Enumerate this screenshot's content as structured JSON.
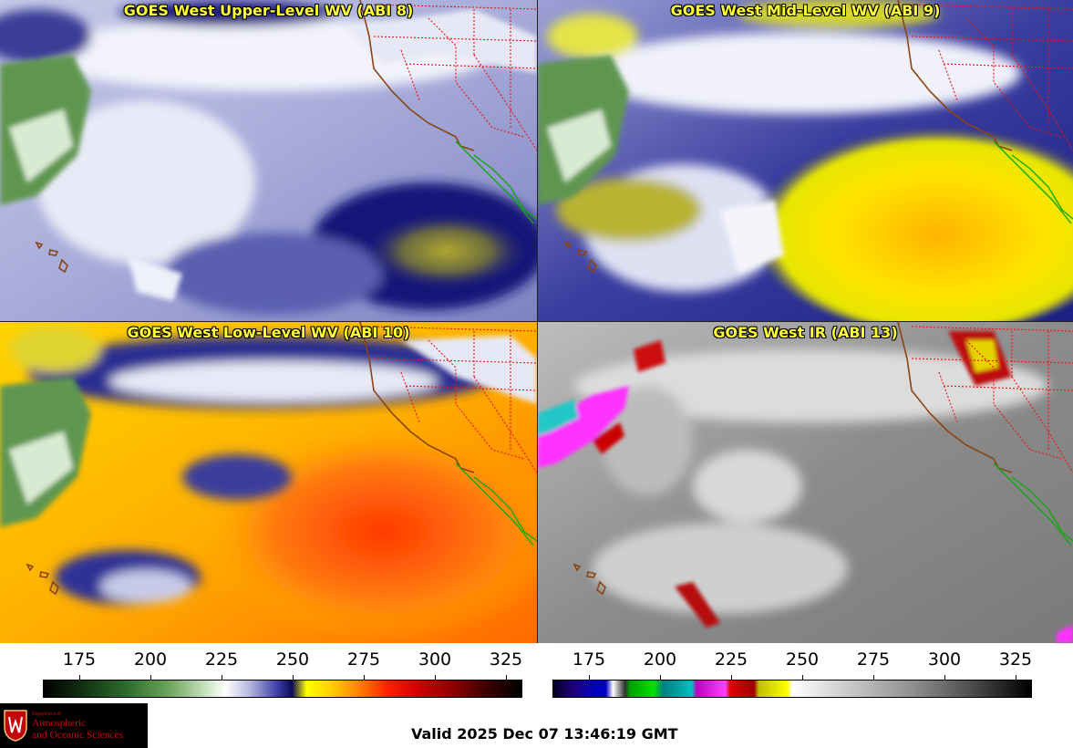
{
  "panels": {
    "top_left": {
      "title": "GOES West Upper-Level WV (ABI 8)"
    },
    "top_right": {
      "title": "GOES West Mid-Level WV (ABI 9)"
    },
    "bottom_left": {
      "title": "GOES West Low-Level WV (ABI 10)"
    },
    "bottom_right": {
      "title": "GOES West IR (ABI 13)"
    }
  },
  "colorbar_left": {
    "ticks": [
      "175",
      "200",
      "225",
      "250",
      "275",
      "300",
      "325"
    ]
  },
  "colorbar_right": {
    "ticks": [
      "175",
      "200",
      "225",
      "250",
      "275",
      "300",
      "325"
    ]
  },
  "logo": {
    "small_line": "Department of",
    "line1": "Atmospheric",
    "line2": "and Oceanic Sciences"
  },
  "valid_time": "Valid 2025 Dec 07 13:46:19 GMT",
  "colors": {
    "title_text": "#ffff33",
    "coastline": "#8b4513",
    "state_borders": "#ff0000",
    "mexico_coast": "#00aa00"
  }
}
